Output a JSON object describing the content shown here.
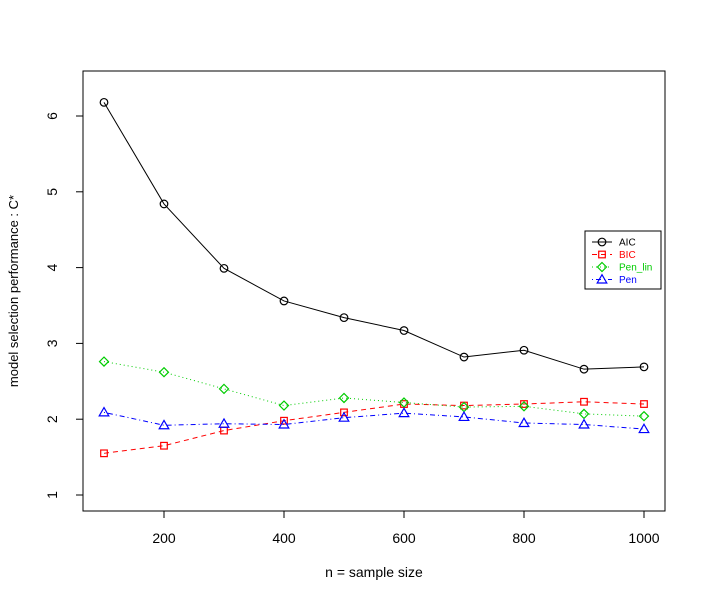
{
  "chart_data": {
    "type": "line",
    "title": "",
    "xlabel": "n = sample size",
    "ylabel": "model selection performance : C*",
    "xlim": [
      100,
      1000
    ],
    "ylim": [
      1,
      6.5
    ],
    "x_ticks": [
      200,
      400,
      600,
      800,
      1000
    ],
    "y_ticks": [
      1,
      2,
      3,
      4,
      5,
      6
    ],
    "grid": false,
    "legend_position": "right",
    "x": [
      100,
      200,
      300,
      400,
      500,
      600,
      700,
      800,
      900,
      1000
    ],
    "series": [
      {
        "name": "AIC",
        "color": "#000000",
        "marker": "circle",
        "line_style": "solid",
        "values": [
          6.18,
          4.84,
          3.99,
          3.56,
          3.34,
          3.17,
          2.82,
          2.91,
          2.66,
          2.69
        ]
      },
      {
        "name": "BIC",
        "color": "#ff0000",
        "marker": "square",
        "line_style": "dashed",
        "values": [
          1.55,
          1.65,
          1.85,
          1.98,
          2.09,
          2.2,
          2.18,
          2.2,
          2.23,
          2.2
        ]
      },
      {
        "name": "Pen_lin",
        "color": "#00cc00",
        "marker": "diamond",
        "line_style": "dotted",
        "values": [
          2.76,
          2.62,
          2.4,
          2.18,
          2.28,
          2.22,
          2.16,
          2.17,
          2.07,
          2.04
        ]
      },
      {
        "name": "Pen",
        "color": "#0000ff",
        "marker": "triangle",
        "line_style": "dotdash",
        "values": [
          2.09,
          1.92,
          1.94,
          1.93,
          2.02,
          2.08,
          2.03,
          1.95,
          1.93,
          1.87
        ]
      }
    ]
  }
}
